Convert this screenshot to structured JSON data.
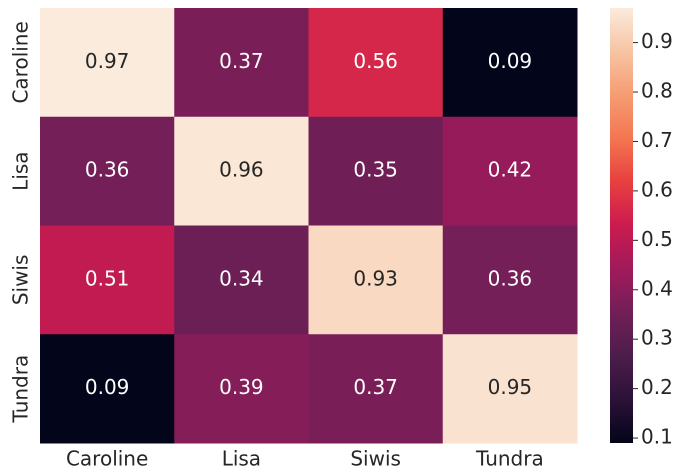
{
  "chart_data": {
    "type": "heatmap",
    "x": [
      "Caroline",
      "Lisa",
      "Siwis",
      "Tundra"
    ],
    "y": [
      "Caroline",
      "Lisa",
      "Siwis",
      "Tundra"
    ],
    "values": [
      [
        0.97,
        0.37,
        0.56,
        0.09
      ],
      [
        0.36,
        0.96,
        0.35,
        0.42
      ],
      [
        0.51,
        0.34,
        0.93,
        0.36
      ],
      [
        0.09,
        0.39,
        0.37,
        0.95
      ]
    ],
    "colormap": "rocket",
    "zlim": [
      0.09,
      0.97
    ],
    "colorbar_ticks": [
      0.1,
      0.2,
      0.3,
      0.4,
      0.5,
      0.6,
      0.7,
      0.8,
      0.9
    ]
  }
}
